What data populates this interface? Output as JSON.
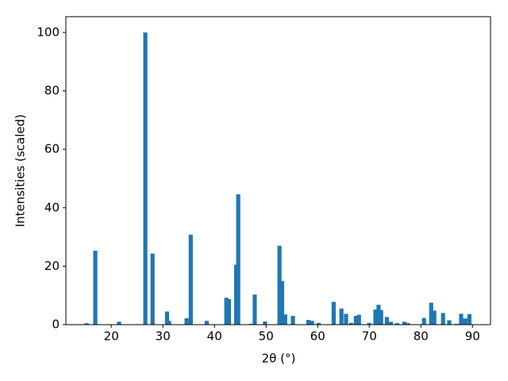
{
  "chart_data": {
    "type": "bar",
    "x_label": "2θ (°)",
    "y_label": "Intensities (scaled)",
    "color": "#1f77b4",
    "x": [
      15.2,
      16.9,
      21.5,
      26.6,
      28.0,
      30.8,
      31.2,
      34.6,
      35.4,
      38.5,
      42.3,
      42.8,
      44.2,
      44.6,
      47.1,
      47.8,
      49.8,
      52.6,
      53.1,
      53.7,
      55.2,
      58.2,
      58.9,
      60.2,
      63.1,
      64.6,
      65.5,
      66.5,
      67.4,
      68.0,
      70.0,
      71.2,
      71.8,
      72.3,
      73.4,
      74.2,
      75.4,
      76.8,
      77.5,
      80.6,
      82.0,
      82.6,
      84.3,
      85.5,
      86.9,
      87.8,
      88.6,
      89.4
    ],
    "values": [
      0.5,
      25.3,
      1.0,
      100,
      24.3,
      4.5,
      1.3,
      2.2,
      30.8,
      1.3,
      9.2,
      8.7,
      20.5,
      44.6,
      0.3,
      10.3,
      1.1,
      27.0,
      14.9,
      3.5,
      3.0,
      1.6,
      1.3,
      0.6,
      7.8,
      5.5,
      3.7,
      0.6,
      3.0,
      3.4,
      0.6,
      5.2,
      6.8,
      5.0,
      2.6,
      1.0,
      0.5,
      1.0,
      0.5,
      2.3,
      7.5,
      4.8,
      4.0,
      1.5,
      0.3,
      3.7,
      2.1,
      3.6
    ],
    "xlim": [
      11.2,
      93.5
    ],
    "ylim": [
      0,
      105.4
    ],
    "xticks": [
      20,
      30,
      40,
      50,
      60,
      70,
      80,
      90
    ],
    "yticks": [
      0,
      20,
      40,
      60,
      80,
      100
    ]
  }
}
